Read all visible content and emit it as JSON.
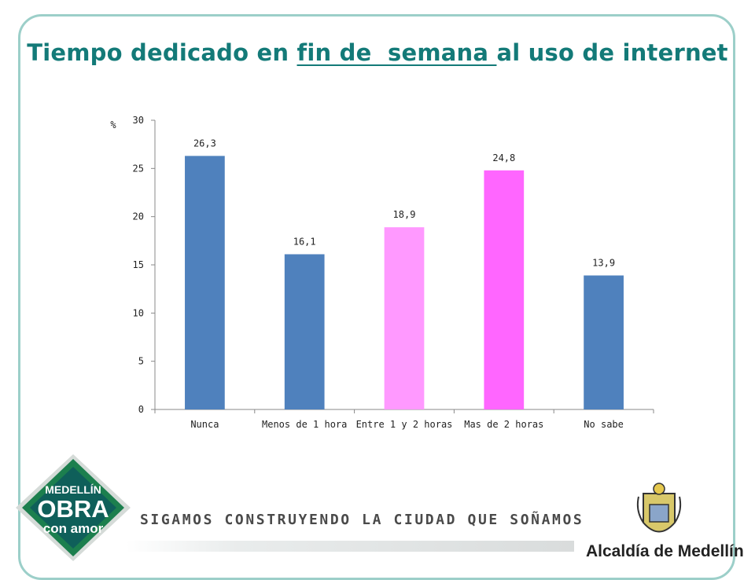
{
  "header": {
    "title_pre": "Tiempo dedicado en ",
    "title_underlined": "fin de  semana ",
    "title_post": "al uso de internet"
  },
  "chart_data": {
    "type": "bar",
    "ylabel": "%",
    "ylim": [
      0,
      30
    ],
    "yticks": [
      0,
      5,
      10,
      15,
      20,
      25,
      30
    ],
    "categories": [
      "Nunca",
      "Menos de 1 hora",
      "Entre 1 y 2 horas",
      "Mas de 2 horas",
      "No sabe"
    ],
    "values": [
      26.3,
      16.1,
      18.9,
      24.8,
      13.9
    ],
    "value_labels": [
      "26,3",
      "16,1",
      "18,9",
      "24,8",
      "13,9"
    ],
    "colors": [
      "#4f81bd",
      "#4f81bd",
      "#ff99ff",
      "#ff66ff",
      "#4f81bd"
    ],
    "grid": false,
    "legend": "none"
  },
  "footer": {
    "slogan": "SIGAMOS CONSTRUYENDO LA CIUDAD QUE SOÑAMOS",
    "logo_line1": "MEDELLÍN",
    "logo_line2": "OBRA",
    "logo_line3": "con amor",
    "org_name": "Alcaldía de Medellín"
  },
  "colors": {
    "title": "#137a78",
    "frame": "#9ccfc9",
    "logo_green": "#1c7f4e",
    "logo_teal": "#0f5f5a"
  },
  "icons": [
    "medellin-logo-icon",
    "coat-of-arms-icon"
  ]
}
